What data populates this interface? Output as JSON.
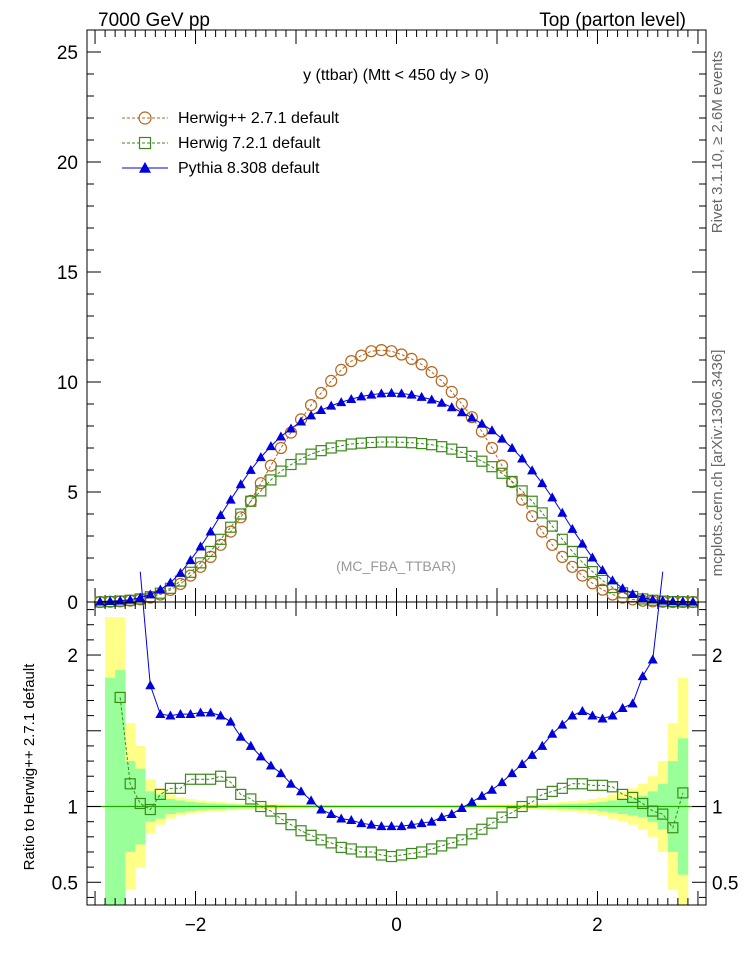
{
  "header": {
    "left": "7000 GeV pp",
    "right": "Top (parton level)"
  },
  "side_labels": {
    "rivet": "Rivet 3.1.10, ≥ 2.6M events",
    "source": "mcplots.cern.ch [arXiv:1306.3436]"
  },
  "chart_data": [
    {
      "type": "line",
      "panel": "main",
      "title": "y (ttbar) (Mtt < 450 dy > 0)",
      "watermark": "(MC_FBA_TTBAR)",
      "xlabel": "",
      "ylabel": "",
      "xlim": [
        -3.08,
        3.08
      ],
      "ylim": [
        0,
        26
      ],
      "yticks": [
        0,
        5,
        10,
        15,
        20,
        25
      ],
      "grid": false,
      "legend_position": "top-left",
      "colors": {
        "herwigpp": "#b5651d",
        "herwig7": "#3a8a1a",
        "pythia": "#0000dd"
      },
      "x": [
        -2.95,
        -2.85,
        -2.75,
        -2.65,
        -2.55,
        -2.45,
        -2.35,
        -2.25,
        -2.15,
        -2.05,
        -1.95,
        -1.85,
        -1.75,
        -1.65,
        -1.55,
        -1.45,
        -1.35,
        -1.25,
        -1.15,
        -1.05,
        -0.95,
        -0.85,
        -0.75,
        -0.65,
        -0.55,
        -0.45,
        -0.35,
        -0.25,
        -0.15,
        -0.05,
        0.05,
        0.15,
        0.25,
        0.35,
        0.45,
        0.55,
        0.65,
        0.75,
        0.85,
        0.95,
        1.05,
        1.15,
        1.25,
        1.35,
        1.45,
        1.55,
        1.65,
        1.75,
        1.85,
        1.95,
        2.05,
        2.15,
        2.25,
        2.35,
        2.45,
        2.55,
        2.65,
        2.75,
        2.85,
        2.95
      ],
      "series": [
        {
          "name": "Herwig++ 2.7.1 default",
          "marker": "open-circle",
          "line": "dashed",
          "values": [
            0.0,
            0.01,
            0.03,
            0.06,
            0.12,
            0.2,
            0.34,
            0.55,
            0.82,
            1.2,
            1.6,
            2.05,
            2.6,
            3.2,
            3.85,
            4.6,
            5.4,
            6.2,
            7.0,
            7.7,
            8.3,
            8.95,
            9.5,
            10.05,
            10.55,
            10.95,
            11.2,
            11.4,
            11.45,
            11.4,
            11.25,
            11.05,
            10.8,
            10.45,
            10.05,
            9.55,
            9.0,
            8.4,
            7.75,
            7.0,
            6.2,
            5.45,
            4.65,
            3.9,
            3.2,
            2.6,
            2.05,
            1.6,
            1.2,
            0.85,
            0.56,
            0.34,
            0.2,
            0.12,
            0.06,
            0.03,
            0.01,
            0.0,
            0.0,
            0.0
          ]
        },
        {
          "name": "Herwig 7.2.1 default",
          "marker": "open-square",
          "line": "dashed",
          "values": [
            0.0,
            0.02,
            0.04,
            0.08,
            0.14,
            0.24,
            0.4,
            0.62,
            0.95,
            1.35,
            1.78,
            2.3,
            2.85,
            3.4,
            4.0,
            4.58,
            5.05,
            5.55,
            5.95,
            6.25,
            6.5,
            6.72,
            6.88,
            7.0,
            7.1,
            7.18,
            7.22,
            7.25,
            7.27,
            7.27,
            7.26,
            7.24,
            7.2,
            7.15,
            7.06,
            6.95,
            6.8,
            6.62,
            6.4,
            6.15,
            5.85,
            5.48,
            5.05,
            4.58,
            4.05,
            3.45,
            2.85,
            2.3,
            1.8,
            1.38,
            0.98,
            0.66,
            0.42,
            0.25,
            0.14,
            0.08,
            0.04,
            0.02,
            0.01,
            0.0
          ]
        },
        {
          "name": "Pythia 8.308 default",
          "marker": "filled-triangle",
          "line": "solid",
          "values": [
            0.02,
            0.04,
            0.06,
            0.1,
            0.2,
            0.34,
            0.56,
            0.88,
            1.32,
            1.9,
            2.52,
            3.2,
            3.95,
            4.65,
            5.35,
            6.0,
            6.58,
            7.08,
            7.52,
            7.88,
            8.2,
            8.48,
            8.72,
            8.92,
            9.08,
            9.22,
            9.34,
            9.42,
            9.48,
            9.5,
            9.48,
            9.42,
            9.32,
            9.2,
            9.05,
            8.85,
            8.62,
            8.38,
            8.1,
            7.8,
            7.42,
            7.0,
            6.52,
            5.98,
            5.4,
            4.75,
            4.05,
            3.32,
            2.65,
            2.02,
            1.45,
            0.98,
            0.62,
            0.36,
            0.2,
            0.11,
            0.06,
            0.03,
            0.02,
            0.01
          ]
        }
      ]
    },
    {
      "type": "line",
      "panel": "ratio",
      "xlabel": "",
      "ylabel": "Ratio to Herwig++ 2.7.1 default",
      "xlim": [
        -3.08,
        3.08
      ],
      "ylim": [
        0.35,
        2.35
      ],
      "yticks": [
        0.5,
        1,
        1.5,
        2
      ],
      "yticklabels": [
        "0.5",
        "1",
        "",
        "2"
      ],
      "xticks": [
        -2,
        0,
        2
      ],
      "xticklabels": [
        "−2",
        "0",
        "2"
      ],
      "reference_line": 1,
      "band_colors": {
        "outer": "#ffff88",
        "inner": "#99ff99",
        "reference": "#22aa00"
      },
      "x": [
        -2.95,
        -2.85,
        -2.75,
        -2.65,
        -2.55,
        -2.45,
        -2.35,
        -2.25,
        -2.15,
        -2.05,
        -1.95,
        -1.85,
        -1.75,
        -1.65,
        -1.55,
        -1.45,
        -1.35,
        -1.25,
        -1.15,
        -1.05,
        -0.95,
        -0.85,
        -0.75,
        -0.65,
        -0.55,
        -0.45,
        -0.35,
        -0.25,
        -0.15,
        -0.05,
        0.05,
        0.15,
        0.25,
        0.35,
        0.45,
        0.55,
        0.65,
        0.75,
        0.85,
        0.95,
        1.05,
        1.15,
        1.25,
        1.35,
        1.45,
        1.55,
        1.65,
        1.75,
        1.85,
        1.95,
        2.05,
        2.15,
        2.25,
        2.35,
        2.45,
        2.55,
        2.65,
        2.75,
        2.85,
        2.95
      ],
      "band_outer_halfwidth": [
        0,
        1.25,
        1.25,
        0.55,
        0.4,
        0.18,
        0.12,
        0.08,
        0.06,
        0.05,
        0.04,
        0.035,
        0.03,
        0.025,
        0.022,
        0.02,
        0.018,
        0.016,
        0.015,
        0.014,
        0.013,
        0.012,
        0.012,
        0.011,
        0.011,
        0.011,
        0.01,
        0.01,
        0.01,
        0.01,
        0.01,
        0.01,
        0.01,
        0.011,
        0.011,
        0.011,
        0.012,
        0.012,
        0.013,
        0.014,
        0.015,
        0.016,
        0.018,
        0.02,
        0.022,
        0.025,
        0.03,
        0.035,
        0.04,
        0.05,
        0.06,
        0.08,
        0.1,
        0.12,
        0.15,
        0.2,
        0.3,
        0.55,
        0.85,
        0
      ],
      "band_inner_halfwidth": [
        0,
        0.85,
        0.9,
        0.3,
        0.25,
        0.1,
        0.08,
        0.05,
        0.04,
        0.03,
        0.025,
        0.02,
        0.018,
        0.015,
        0.013,
        0.012,
        0.011,
        0.01,
        0.009,
        0.008,
        0.008,
        0.007,
        0.007,
        0.007,
        0.006,
        0.006,
        0.006,
        0.006,
        0.006,
        0.006,
        0.006,
        0.006,
        0.006,
        0.006,
        0.006,
        0.006,
        0.007,
        0.007,
        0.007,
        0.008,
        0.008,
        0.009,
        0.01,
        0.011,
        0.012,
        0.013,
        0.015,
        0.018,
        0.02,
        0.025,
        0.03,
        0.04,
        0.05,
        0.06,
        0.07,
        0.1,
        0.15,
        0.3,
        0.45,
        0
      ],
      "series": [
        {
          "name": "Herwig 7.2.1 default",
          "marker": "open-square",
          "values": [
            null,
            null,
            1.72,
            1.15,
            1.02,
            0.98,
            1.08,
            1.12,
            1.12,
            1.18,
            1.18,
            1.18,
            1.2,
            1.16,
            1.08,
            1.05,
            1.0,
            0.97,
            0.92,
            0.88,
            0.84,
            0.81,
            0.78,
            0.76,
            0.73,
            0.72,
            0.7,
            0.7,
            0.68,
            0.67,
            0.68,
            0.69,
            0.7,
            0.72,
            0.74,
            0.76,
            0.78,
            0.82,
            0.85,
            0.89,
            0.93,
            0.96,
            1.0,
            1.03,
            1.08,
            1.1,
            1.12,
            1.15,
            1.15,
            1.14,
            1.14,
            1.13,
            1.08,
            1.06,
            1.02,
            0.97,
            0.95,
            0.86,
            1.09,
            null
          ]
        },
        {
          "name": "Pythia 8.308 default",
          "marker": "filled-triangle",
          "values": [
            null,
            null,
            null,
            null,
            3.0,
            1.8,
            1.61,
            1.6,
            1.61,
            1.61,
            1.62,
            1.62,
            1.6,
            1.56,
            1.46,
            1.4,
            1.33,
            1.27,
            1.22,
            1.15,
            1.1,
            1.04,
            0.98,
            0.95,
            0.92,
            0.91,
            0.89,
            0.88,
            0.87,
            0.87,
            0.87,
            0.88,
            0.89,
            0.9,
            0.93,
            0.95,
            0.99,
            1.03,
            1.07,
            1.11,
            1.16,
            1.22,
            1.28,
            1.34,
            1.4,
            1.48,
            1.54,
            1.6,
            1.63,
            1.6,
            1.58,
            1.6,
            1.65,
            1.68,
            1.86,
            1.97,
            2.55,
            null,
            null,
            null
          ]
        }
      ]
    }
  ]
}
